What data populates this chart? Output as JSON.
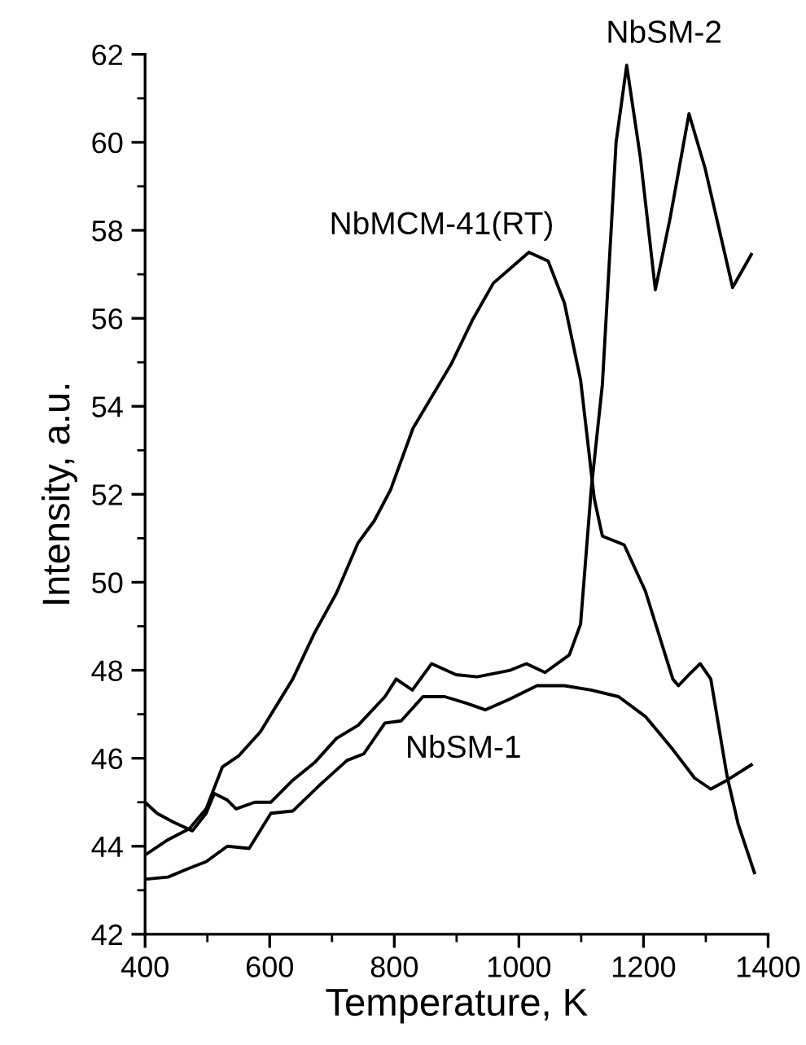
{
  "chart_data": {
    "type": "line",
    "xlabel": "Temperature, K",
    "ylabel": "Intensity, a.u.",
    "xlim": [
      400,
      1400
    ],
    "ylim": [
      42,
      62
    ],
    "xticks": [
      400,
      600,
      800,
      1000,
      1200,
      1400
    ],
    "yticks": [
      42,
      44,
      46,
      48,
      50,
      52,
      54,
      56,
      58,
      60,
      62
    ],
    "grid": false,
    "legend": false,
    "marker": "none",
    "line_style": "solid",
    "series": [
      {
        "name": "NbMCM-41(RT)",
        "color": "#000000",
        "x": [
          400,
          437,
          471,
          498,
          524,
          550,
          585,
          637,
          672,
          707,
          742,
          768,
          794,
          830,
          891,
          925,
          959,
          1016,
          1047,
          1073,
          1099,
          1121,
          1134,
          1169,
          1203,
          1247,
          1256,
          1273,
          1291,
          1308,
          1334,
          1352,
          1378
        ],
        "values": [
          43.8,
          44.15,
          44.4,
          44.85,
          45.8,
          46.05,
          46.6,
          47.8,
          48.85,
          49.75,
          50.9,
          51.4,
          52.1,
          53.5,
          54.95,
          55.95,
          56.8,
          57.5,
          57.3,
          56.35,
          54.6,
          51.9,
          51.05,
          50.85,
          49.8,
          47.8,
          47.65,
          47.9,
          48.15,
          47.8,
          45.6,
          44.5,
          43.4
        ]
      },
      {
        "name": "NbSM-2",
        "color": "#000000",
        "x": [
          400,
          419,
          445,
          476,
          498,
          511,
          532,
          546,
          576,
          602,
          637,
          672,
          707,
          742,
          785,
          803,
          829,
          860,
          899,
          933,
          986,
          1012,
          1042,
          1081,
          1099,
          1116,
          1134,
          1156,
          1173,
          1195,
          1219,
          1243,
          1273,
          1299,
          1343,
          1373
        ],
        "values": [
          45.0,
          44.75,
          44.55,
          44.35,
          44.75,
          45.2,
          45.05,
          44.85,
          45.0,
          45.0,
          45.5,
          45.9,
          46.45,
          46.75,
          47.4,
          47.8,
          47.55,
          48.15,
          47.9,
          47.85,
          48.0,
          48.15,
          47.95,
          48.35,
          49.05,
          52.1,
          54.5,
          60.0,
          61.75,
          59.65,
          56.65,
          58.3,
          60.65,
          59.4,
          56.7,
          57.45
        ]
      },
      {
        "name": "NbSM-1",
        "color": "#000000",
        "x": [
          400,
          437,
          471,
          498,
          532,
          567,
          602,
          637,
          681,
          724,
          751,
          785,
          811,
          846,
          881,
          916,
          946,
          986,
          1029,
          1073,
          1116,
          1160,
          1203,
          1247,
          1282,
          1308,
          1334,
          1373
        ],
        "values": [
          43.25,
          43.3,
          43.5,
          43.65,
          44.0,
          43.95,
          44.75,
          44.8,
          45.4,
          45.95,
          46.1,
          46.8,
          46.85,
          47.4,
          47.4,
          47.25,
          47.1,
          47.35,
          47.65,
          47.65,
          47.55,
          47.4,
          46.95,
          46.2,
          45.55,
          45.3,
          45.5,
          45.85
        ]
      }
    ]
  }
}
